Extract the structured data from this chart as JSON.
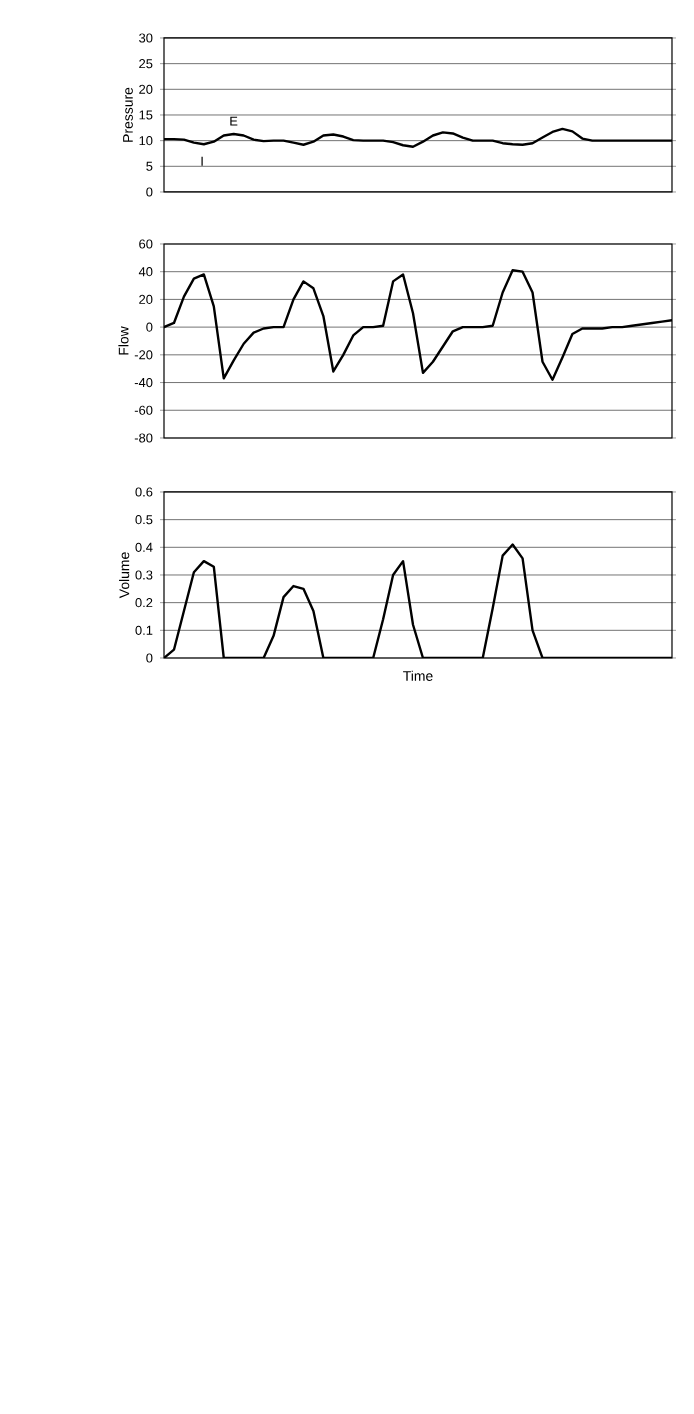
{
  "chart_data": [
    {
      "type": "line",
      "ylabel": "Pressure",
      "annotations": [
        "E",
        "I"
      ],
      "color": "#000000",
      "grid": "y",
      "tick_labels": "y",
      "ylim": [
        0,
        30
      ],
      "yticks": [
        0,
        5,
        10,
        15,
        20,
        25,
        30
      ],
      "categories": [
        null,
        null,
        null,
        null,
        null,
        null,
        null,
        null,
        null,
        null,
        null,
        null,
        null,
        null,
        null,
        null,
        null,
        null,
        null,
        null,
        null,
        null,
        null,
        null,
        null,
        null,
        null,
        null,
        null,
        null,
        null,
        null,
        null,
        null,
        null,
        null,
        null,
        null,
        null,
        null,
        null,
        null,
        null,
        null,
        null,
        null,
        null,
        null,
        null,
        null,
        null,
        null
      ],
      "values": [
        10.3,
        10.3,
        10.2,
        9.6,
        9.3,
        9.8,
        11,
        11.3,
        11,
        10.2,
        9.9,
        10,
        10,
        9.6,
        9.2,
        9.8,
        11,
        11.2,
        10.8,
        10.1,
        10,
        10,
        10,
        9.7,
        9.1,
        8.8,
        9.8,
        11,
        11.6,
        11.4,
        10.6,
        10,
        10,
        10,
        9.5,
        9.3,
        9.2,
        9.5,
        10.6,
        11.7,
        12.3,
        11.8,
        10.4,
        10,
        10,
        10,
        10,
        10,
        10,
        10,
        10,
        10
      ]
    },
    {
      "type": "line",
      "ylabel": "Flow",
      "color": "#000000",
      "grid": "y",
      "tick_labels": "y",
      "ylim": [
        -80,
        60
      ],
      "yticks": [
        -80,
        -60,
        -40,
        -20,
        0,
        20,
        40,
        60
      ],
      "categories": [
        null,
        null,
        null,
        null,
        null,
        null,
        null,
        null,
        null,
        null,
        null,
        null,
        null,
        null,
        null,
        null,
        null,
        null,
        null,
        null,
        null,
        null,
        null,
        null,
        null,
        null,
        null,
        null,
        null,
        null,
        null,
        null,
        null,
        null,
        null,
        null,
        null,
        null,
        null,
        null,
        null,
        null,
        null,
        null,
        null,
        null,
        null,
        null,
        null,
        null,
        null,
        null
      ],
      "values": [
        0,
        3,
        22,
        35,
        38,
        15,
        -37,
        -24,
        -12,
        -4,
        -1,
        0,
        0,
        20,
        33,
        28,
        8,
        -32,
        -20,
        -6,
        0,
        0,
        1,
        33,
        38,
        10,
        -33,
        -25,
        -14,
        -3,
        0,
        0,
        0,
        1,
        25,
        41,
        40,
        25,
        -25,
        -38,
        -22,
        -5,
        -1,
        -1,
        -1,
        0,
        0,
        1,
        2,
        3,
        4,
        5
      ]
    },
    {
      "type": "line",
      "ylabel": "Volume",
      "xlabel": "Time",
      "color": "#000000",
      "grid": "y",
      "tick_labels": "y",
      "ylim": [
        0,
        0.6
      ],
      "yticks": [
        0,
        0.1,
        0.2,
        0.3,
        0.4,
        0.5,
        0.6
      ],
      "categories": [
        null,
        null,
        null,
        null,
        null,
        null,
        null,
        null,
        null,
        null,
        null,
        null,
        null,
        null,
        null,
        null,
        null,
        null,
        null,
        null,
        null,
        null,
        null,
        null,
        null,
        null,
        null,
        null,
        null,
        null,
        null,
        null,
        null,
        null,
        null,
        null,
        null,
        null,
        null,
        null,
        null,
        null,
        null,
        null,
        null,
        null,
        null,
        null,
        null,
        null,
        null,
        null
      ],
      "values": [
        0,
        0.03,
        0.17,
        0.31,
        0.35,
        0.33,
        0,
        0,
        0,
        0,
        0,
        0.08,
        0.22,
        0.26,
        0.25,
        0.17,
        0,
        0,
        0,
        0,
        0,
        0,
        0.14,
        0.3,
        0.35,
        0.12,
        0,
        0,
        0,
        0,
        0,
        0,
        0,
        0.18,
        0.37,
        0.41,
        0.36,
        0.1,
        0,
        0,
        0,
        0,
        0,
        0,
        0,
        0,
        0,
        0,
        0,
        0,
        0,
        0
      ]
    }
  ]
}
